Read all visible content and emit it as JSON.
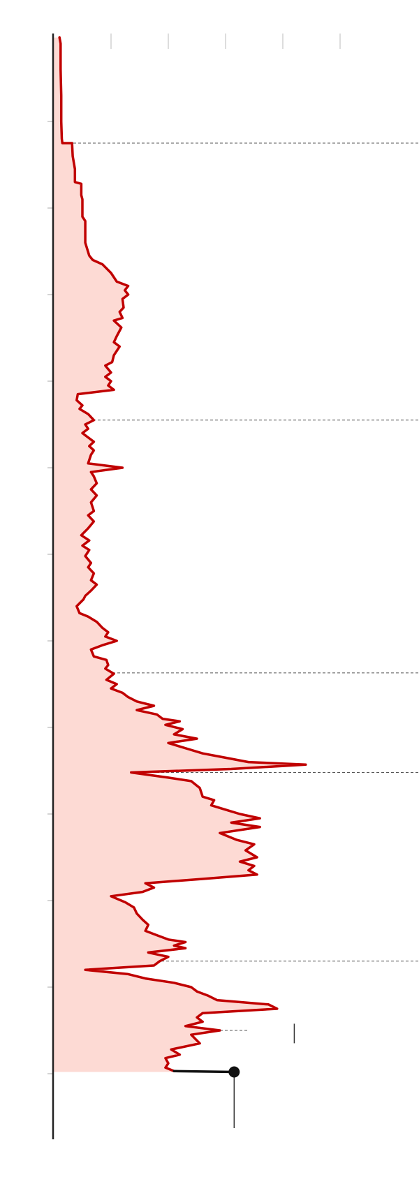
{
  "chart_data": {
    "type": "area",
    "orientation": "vertical",
    "title": "",
    "xlabel": "",
    "ylabel": "",
    "xlim": [
      0,
      6
    ],
    "ylim": [
      0,
      12.9
    ],
    "x_ticks": [
      1,
      2,
      3,
      4,
      5
    ],
    "y_ticks": [
      1,
      2,
      3,
      4,
      5,
      6,
      7,
      8,
      9,
      10,
      11,
      12
    ],
    "grid": false,
    "legend": "none",
    "series": [
      {
        "name": "",
        "color": "#c00000",
        "fill": "#fddad4",
        "points": [
          [
            0.1,
            0.03
          ],
          [
            0.12,
            0.1
          ],
          [
            0.12,
            0.4
          ],
          [
            0.13,
            0.7
          ],
          [
            0.13,
            1.0
          ],
          [
            0.14,
            1.2
          ],
          [
            0.15,
            1.25
          ],
          [
            0.32,
            1.25
          ],
          [
            0.33,
            1.4
          ],
          [
            0.37,
            1.55
          ],
          [
            0.37,
            1.7
          ],
          [
            0.48,
            1.72
          ],
          [
            0.48,
            1.85
          ],
          [
            0.5,
            1.9
          ],
          [
            0.5,
            2.1
          ],
          [
            0.55,
            2.15
          ],
          [
            0.55,
            2.4
          ],
          [
            0.62,
            2.55
          ],
          [
            0.68,
            2.6
          ],
          [
            0.85,
            2.65
          ],
          [
            1.0,
            2.75
          ],
          [
            1.1,
            2.85
          ],
          [
            1.3,
            2.9
          ],
          [
            1.24,
            2.95
          ],
          [
            1.3,
            3.0
          ],
          [
            1.2,
            3.05
          ],
          [
            1.22,
            3.15
          ],
          [
            1.15,
            3.2
          ],
          [
            1.2,
            3.27
          ],
          [
            1.05,
            3.3
          ],
          [
            1.18,
            3.38
          ],
          [
            1.1,
            3.48
          ],
          [
            1.05,
            3.55
          ],
          [
            1.15,
            3.6
          ],
          [
            1.05,
            3.7
          ],
          [
            1.02,
            3.78
          ],
          [
            0.9,
            3.82
          ],
          [
            1.0,
            3.9
          ],
          [
            0.9,
            3.95
          ],
          [
            1.0,
            4.0
          ],
          [
            0.95,
            4.05
          ],
          [
            1.05,
            4.1
          ],
          [
            0.42,
            4.15
          ],
          [
            0.4,
            4.22
          ],
          [
            0.5,
            4.28
          ],
          [
            0.45,
            4.32
          ],
          [
            0.6,
            4.38
          ],
          [
            0.7,
            4.45
          ],
          [
            0.55,
            4.5
          ],
          [
            0.6,
            4.55
          ],
          [
            0.5,
            4.6
          ],
          [
            0.6,
            4.65
          ],
          [
            0.7,
            4.7
          ],
          [
            0.62,
            4.75
          ],
          [
            0.7,
            4.8
          ],
          [
            0.65,
            4.85
          ],
          [
            0.6,
            4.95
          ],
          [
            1.2,
            5.0
          ],
          [
            0.65,
            5.05
          ],
          [
            0.7,
            5.1
          ],
          [
            0.75,
            5.18
          ],
          [
            0.65,
            5.25
          ],
          [
            0.75,
            5.32
          ],
          [
            0.65,
            5.4
          ],
          [
            0.7,
            5.5
          ],
          [
            0.6,
            5.55
          ],
          [
            0.7,
            5.62
          ],
          [
            0.6,
            5.7
          ],
          [
            0.48,
            5.78
          ],
          [
            0.62,
            5.84
          ],
          [
            0.5,
            5.9
          ],
          [
            0.62,
            5.95
          ],
          [
            0.55,
            6.02
          ],
          [
            0.65,
            6.1
          ],
          [
            0.6,
            6.15
          ],
          [
            0.7,
            6.22
          ],
          [
            0.65,
            6.3
          ],
          [
            0.75,
            6.35
          ],
          [
            0.65,
            6.42
          ],
          [
            0.55,
            6.48
          ],
          [
            0.52,
            6.52
          ],
          [
            0.4,
            6.6
          ],
          [
            0.45,
            6.68
          ],
          [
            0.6,
            6.72
          ],
          [
            0.75,
            6.78
          ],
          [
            0.85,
            6.85
          ],
          [
            0.95,
            6.9
          ],
          [
            0.9,
            6.95
          ],
          [
            1.1,
            7.0
          ],
          [
            0.85,
            7.05
          ],
          [
            0.65,
            7.1
          ],
          [
            0.7,
            7.18
          ],
          [
            0.92,
            7.22
          ],
          [
            0.95,
            7.28
          ],
          [
            0.9,
            7.32
          ],
          [
            1.05,
            7.38
          ],
          [
            0.92,
            7.45
          ],
          [
            1.1,
            7.5
          ],
          [
            1.0,
            7.55
          ],
          [
            1.2,
            7.6
          ],
          [
            1.3,
            7.65
          ],
          [
            1.45,
            7.7
          ],
          [
            1.75,
            7.75
          ],
          [
            1.45,
            7.8
          ],
          [
            1.8,
            7.85
          ],
          [
            1.9,
            7.9
          ],
          [
            2.2,
            7.93
          ],
          [
            1.95,
            7.97
          ],
          [
            2.25,
            8.02
          ],
          [
            2.1,
            8.08
          ],
          [
            2.5,
            8.13
          ],
          [
            2.0,
            8.18
          ],
          [
            2.35,
            8.25
          ],
          [
            2.6,
            8.3
          ],
          [
            3.0,
            8.35
          ],
          [
            3.4,
            8.4
          ],
          [
            4.4,
            8.43
          ],
          [
            3.1,
            8.48
          ],
          [
            1.35,
            8.52
          ],
          [
            2.0,
            8.58
          ],
          [
            2.4,
            8.62
          ],
          [
            2.55,
            8.7
          ],
          [
            2.6,
            8.8
          ],
          [
            2.8,
            8.84
          ],
          [
            2.75,
            8.9
          ],
          [
            3.0,
            8.95
          ],
          [
            3.25,
            9.0
          ],
          [
            3.6,
            9.05
          ],
          [
            3.1,
            9.1
          ],
          [
            3.6,
            9.15
          ],
          [
            2.9,
            9.22
          ],
          [
            3.2,
            9.3
          ],
          [
            3.5,
            9.35
          ],
          [
            3.35,
            9.42
          ],
          [
            3.55,
            9.5
          ],
          [
            3.25,
            9.55
          ],
          [
            3.5,
            9.6
          ],
          [
            3.4,
            9.65
          ],
          [
            3.55,
            9.7
          ],
          [
            2.6,
            9.75
          ],
          [
            1.6,
            9.8
          ],
          [
            1.75,
            9.85
          ],
          [
            1.55,
            9.9
          ],
          [
            1.0,
            9.95
          ],
          [
            1.25,
            10.02
          ],
          [
            1.4,
            10.08
          ],
          [
            1.45,
            10.15
          ],
          [
            1.55,
            10.22
          ],
          [
            1.65,
            10.28
          ],
          [
            1.6,
            10.35
          ],
          [
            1.8,
            10.4
          ],
          [
            2.0,
            10.45
          ],
          [
            2.3,
            10.48
          ],
          [
            2.1,
            10.52
          ],
          [
            2.3,
            10.55
          ],
          [
            1.65,
            10.6
          ],
          [
            2.0,
            10.65
          ],
          [
            1.85,
            10.7
          ],
          [
            1.75,
            10.75
          ],
          [
            0.55,
            10.8
          ],
          [
            1.3,
            10.85
          ],
          [
            1.6,
            10.9
          ],
          [
            2.1,
            10.95
          ],
          [
            2.4,
            11.0
          ],
          [
            2.5,
            11.05
          ],
          [
            2.7,
            11.1
          ],
          [
            2.85,
            11.15
          ],
          [
            3.75,
            11.2
          ],
          [
            3.9,
            11.25
          ],
          [
            2.6,
            11.3
          ],
          [
            2.5,
            11.35
          ],
          [
            2.6,
            11.4
          ],
          [
            2.3,
            11.45
          ],
          [
            2.9,
            11.5
          ],
          [
            2.4,
            11.55
          ],
          [
            2.55,
            11.65
          ],
          [
            2.05,
            11.72
          ],
          [
            2.2,
            11.78
          ],
          [
            1.95,
            11.82
          ],
          [
            2.0,
            11.88
          ],
          [
            1.95,
            11.93
          ],
          [
            2.1,
            11.97
          ],
          [
            3.15,
            11.98
          ]
        ]
      }
    ],
    "reference_lines_y": [
      1.25,
      4.45,
      7.37,
      8.52,
      10.7,
      11.5
    ],
    "highlight_point": {
      "x": 3.15,
      "y": 11.98
    },
    "marker_tick": {
      "x": 4.2,
      "y": 11.6
    }
  }
}
